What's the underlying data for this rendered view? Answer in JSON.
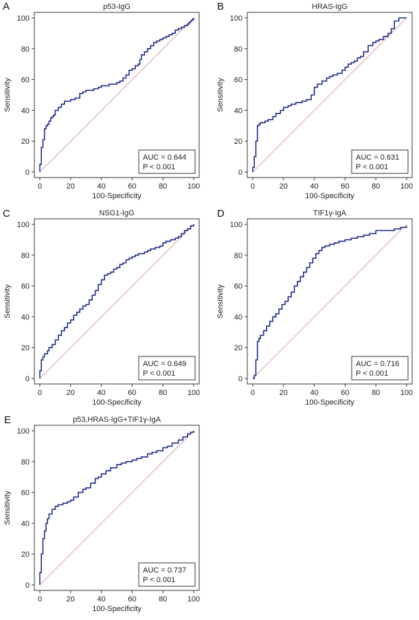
{
  "chart_data": [
    {
      "type": "line",
      "panel_label": "A",
      "title": "p53-IgG",
      "xlabel": "100-Specificity",
      "ylabel": "Sensitivity",
      "xlim": [
        0,
        100
      ],
      "ylim": [
        0,
        100
      ],
      "xticks": [
        "0",
        "20",
        "40",
        "60",
        "80",
        "100"
      ],
      "yticks": [
        "0",
        "20",
        "40",
        "60",
        "80",
        "100"
      ],
      "grid": false,
      "legend_position": "bottom-right",
      "auc_text": "AUC = 0.644",
      "p_text": "P < 0.001",
      "roc_color": "#1f2a8c",
      "reference_color": "#d9a0a6",
      "series": [
        {
          "name": "ROC",
          "x": [
            0,
            0,
            1,
            1,
            2,
            2,
            3,
            3,
            4,
            5,
            6,
            7,
            8,
            9,
            10,
            12,
            14,
            16,
            18,
            20,
            23,
            26,
            28,
            30,
            32,
            35,
            38,
            40,
            42,
            45,
            48,
            50,
            52,
            54,
            56,
            58,
            60,
            62,
            64,
            65,
            66,
            68,
            70,
            72,
            74,
            76,
            78,
            80,
            82,
            84,
            86,
            88,
            90,
            92,
            94,
            96,
            97,
            98,
            99,
            100
          ],
          "y": [
            0,
            5,
            12,
            16,
            18,
            21,
            25,
            28,
            30,
            31,
            33,
            35,
            36,
            37,
            40,
            42,
            44,
            46,
            46,
            47,
            48,
            51,
            52,
            53,
            53,
            54,
            55,
            56,
            56,
            57,
            57,
            58,
            59,
            61,
            63,
            66,
            67,
            69,
            70,
            73,
            76,
            78,
            80,
            82,
            84,
            85,
            86,
            87,
            88,
            89,
            90,
            92,
            93,
            94,
            95,
            96,
            97,
            98,
            99,
            100
          ]
        },
        {
          "name": "Reference",
          "x": [
            0,
            100
          ],
          "y": [
            0,
            100
          ]
        }
      ]
    },
    {
      "type": "line",
      "panel_label": "B",
      "title": "HRAS-IgG",
      "xlabel": "100-Specificity",
      "ylabel": "Sensitivity",
      "xlim": [
        0,
        100
      ],
      "ylim": [
        0,
        100
      ],
      "xticks": [
        "0",
        "20",
        "40",
        "60",
        "80",
        "100"
      ],
      "yticks": [
        "0",
        "20",
        "40",
        "60",
        "80",
        "100"
      ],
      "grid": false,
      "legend_position": "bottom-right",
      "auc_text": "AUC = 0.631",
      "p_text": "P < 0.001",
      "roc_color": "#1f2a8c",
      "reference_color": "#d9a0a6",
      "series": [
        {
          "name": "ROC",
          "x": [
            0,
            0,
            1,
            1,
            2,
            2,
            3,
            3,
            4,
            5,
            8,
            10,
            13,
            15,
            18,
            20,
            23,
            25,
            28,
            30,
            32,
            35,
            38,
            40,
            42,
            45,
            48,
            50,
            52,
            55,
            58,
            60,
            62,
            64,
            66,
            68,
            70,
            72,
            75,
            78,
            80,
            82,
            85,
            88,
            90,
            92,
            95,
            97,
            100
          ],
          "y": [
            0,
            3,
            6,
            10,
            15,
            20,
            25,
            30,
            31,
            32,
            33,
            34,
            36,
            38,
            40,
            42,
            43,
            44,
            45,
            45,
            46,
            47,
            50,
            55,
            57,
            59,
            61,
            62,
            63,
            64,
            66,
            68,
            70,
            71,
            72,
            74,
            75,
            78,
            82,
            84,
            85,
            86,
            88,
            90,
            93,
            98,
            100,
            100,
            100
          ]
        },
        {
          "name": "Reference",
          "x": [
            0,
            100
          ],
          "y": [
            0,
            100
          ]
        }
      ]
    },
    {
      "type": "line",
      "panel_label": "C",
      "title": "NSG1-IgG",
      "xlabel": "100-Specificity",
      "ylabel": "Sensitivity",
      "xlim": [
        0,
        100
      ],
      "ylim": [
        0,
        100
      ],
      "xticks": [
        "0",
        "20",
        "40",
        "60",
        "80",
        "100"
      ],
      "yticks": [
        "0",
        "20",
        "40",
        "60",
        "80",
        "100"
      ],
      "grid": false,
      "legend_position": "bottom-right",
      "auc_text": "AUC = 0.649",
      "p_text": "P < 0.001",
      "roc_color": "#1f2a8c",
      "reference_color": "#d9a0a6",
      "series": [
        {
          "name": "ROC",
          "x": [
            0,
            0,
            1,
            1,
            2,
            3,
            5,
            6,
            8,
            10,
            12,
            14,
            16,
            18,
            20,
            22,
            24,
            26,
            28,
            30,
            32,
            34,
            36,
            38,
            40,
            42,
            44,
            46,
            48,
            50,
            52,
            54,
            56,
            58,
            60,
            62,
            64,
            66,
            68,
            70,
            72,
            75,
            78,
            80,
            82,
            85,
            88,
            90,
            92,
            94,
            96,
            98,
            100
          ],
          "y": [
            0,
            5,
            9,
            12,
            14,
            16,
            18,
            20,
            22,
            25,
            28,
            31,
            33,
            36,
            38,
            41,
            43,
            45,
            47,
            48,
            51,
            54,
            57,
            61,
            64,
            67,
            68,
            69,
            71,
            72,
            74,
            75,
            77,
            78,
            79,
            80,
            81,
            81,
            82,
            83,
            84,
            85,
            86,
            88,
            89,
            90,
            91,
            92,
            94,
            96,
            97,
            99,
            100
          ]
        },
        {
          "name": "Reference",
          "x": [
            0,
            100
          ],
          "y": [
            0,
            100
          ]
        }
      ]
    },
    {
      "type": "line",
      "panel_label": "D",
      "title": "TIF1γ-IgA",
      "xlabel": "100-Specificity",
      "ylabel": "Sensitivity",
      "xlim": [
        0,
        100
      ],
      "ylim": [
        0,
        100
      ],
      "xticks": [
        "0",
        "20",
        "40",
        "60",
        "80",
        "100"
      ],
      "yticks": [
        "0",
        "20",
        "40",
        "60",
        "80",
        "100"
      ],
      "grid": false,
      "legend_position": "bottom-right",
      "auc_text": "AUC = 0.716",
      "p_text": "P < 0.001",
      "roc_color": "#1f2a8c",
      "reference_color": "#d9a0a6",
      "series": [
        {
          "name": "ROC",
          "x": [
            0,
            1,
            2,
            2,
            3,
            3,
            4,
            5,
            7,
            9,
            11,
            13,
            15,
            17,
            19,
            21,
            23,
            25,
            27,
            29,
            31,
            33,
            35,
            37,
            39,
            41,
            43,
            45,
            47,
            50,
            53,
            56,
            60,
            64,
            68,
            72,
            76,
            80,
            84,
            88,
            92,
            96,
            100
          ],
          "y": [
            0,
            2,
            5,
            12,
            20,
            24,
            26,
            28,
            31,
            34,
            37,
            40,
            42,
            45,
            48,
            50,
            53,
            56,
            60,
            63,
            66,
            69,
            72,
            75,
            78,
            81,
            83,
            85,
            86,
            87,
            88,
            89,
            90,
            91,
            92,
            93,
            94,
            96,
            96,
            96,
            97,
            98,
            99
          ]
        },
        {
          "name": "Reference",
          "x": [
            0,
            100
          ],
          "y": [
            0,
            100
          ]
        }
      ]
    },
    {
      "type": "line",
      "panel_label": "E",
      "title": "p53,HRAS-IgG+TIF1γ-IgA",
      "xlabel": "100-Specificity",
      "ylabel": "Sensitivity",
      "xlim": [
        0,
        100
      ],
      "ylim": [
        0,
        100
      ],
      "xticks": [
        "0",
        "20",
        "40",
        "60",
        "80",
        "100"
      ],
      "yticks": [
        "0",
        "20",
        "40",
        "60",
        "80",
        "100"
      ],
      "grid": false,
      "legend_position": "bottom-right",
      "auc_text": "AUC = 0.737",
      "p_text": "P < 0.001",
      "roc_color": "#1f2a8c",
      "reference_color": "#d9a0a6",
      "series": [
        {
          "name": "ROC",
          "x": [
            0,
            0,
            1,
            1,
            2,
            2,
            3,
            4,
            5,
            6,
            8,
            10,
            12,
            15,
            18,
            20,
            22,
            25,
            28,
            30,
            33,
            36,
            38,
            40,
            43,
            46,
            50,
            53,
            56,
            60,
            63,
            66,
            70,
            73,
            76,
            80,
            83,
            86,
            90,
            93,
            96,
            98,
            100
          ],
          "y": [
            0,
            8,
            15,
            20,
            25,
            30,
            35,
            40,
            43,
            46,
            49,
            51,
            52,
            53,
            54,
            55,
            57,
            60,
            62,
            63,
            66,
            69,
            70,
            72,
            74,
            76,
            78,
            79,
            80,
            81,
            82,
            83,
            85,
            86,
            87,
            89,
            90,
            92,
            94,
            96,
            98,
            99,
            100
          ]
        },
        {
          "name": "Reference",
          "x": [
            0,
            100
          ],
          "y": [
            0,
            100
          ]
        }
      ]
    }
  ]
}
